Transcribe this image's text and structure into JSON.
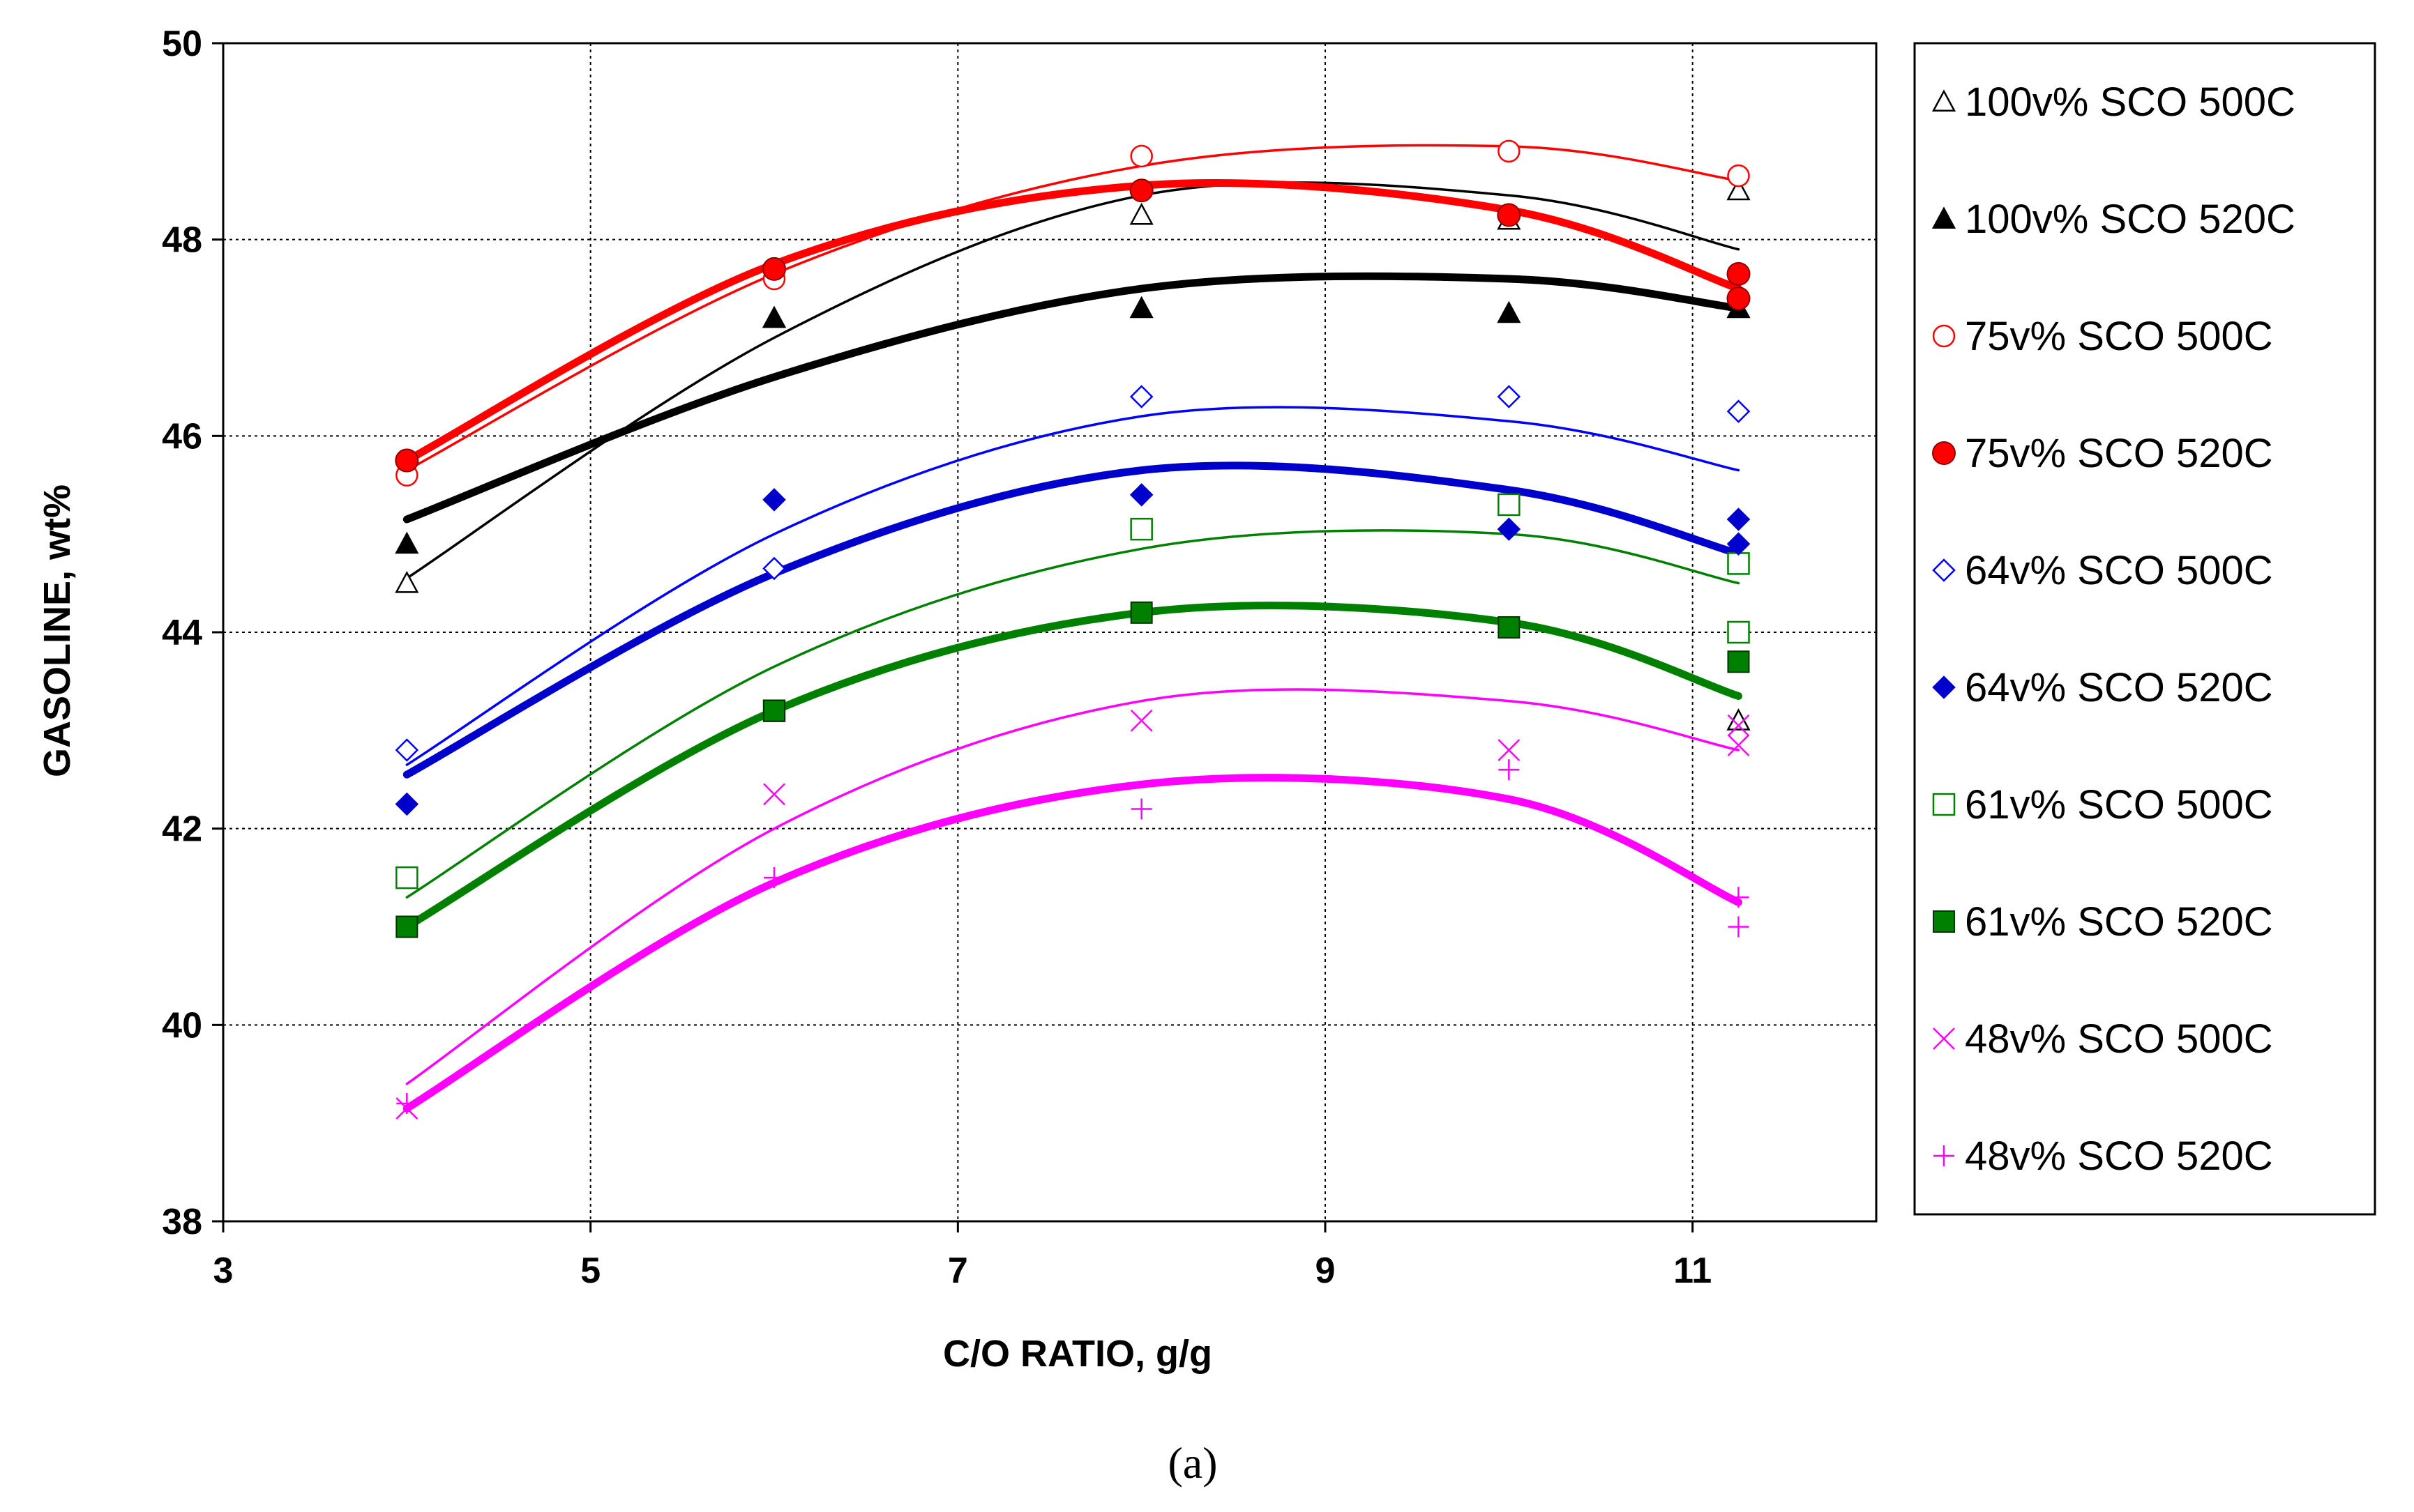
{
  "chart_data": {
    "type": "scatter",
    "title": "",
    "caption": "(a)",
    "xlabel": "C/O RATIO, g/g",
    "ylabel": "GASOLINE, wt%",
    "xlim": [
      3,
      12
    ],
    "ylim": [
      38,
      50
    ],
    "xticks": [
      3,
      5,
      7,
      9,
      11
    ],
    "yticks": [
      38,
      40,
      42,
      44,
      46,
      48,
      50
    ],
    "grid": "dashed-major",
    "legend_position": "right",
    "x": [
      4.0,
      6.0,
      8.0,
      10.0,
      11.25
    ],
    "series": [
      {
        "name": "100v% SCO 500C",
        "marker": "triangle-open",
        "color": "#000000",
        "line_weight": "thin",
        "values": [
          44.5,
          47.2,
          48.25,
          48.2,
          48.5
        ],
        "trend": [
          44.55,
          47.0,
          48.45,
          48.45,
          47.9
        ]
      },
      {
        "name": "100v% SCO 520C",
        "marker": "triangle-filled",
        "color": "#000000",
        "line_weight": "thick",
        "values": [
          44.9,
          47.2,
          47.3,
          47.25,
          47.3
        ],
        "trend": [
          45.15,
          46.6,
          47.5,
          47.6,
          47.3
        ]
      },
      {
        "name": "75v% SCO 500C",
        "marker": "circle-open",
        "color": "#ff0000",
        "line_weight": "thin",
        "values": [
          45.6,
          47.6,
          48.85,
          48.9,
          48.65
        ],
        "trend": [
          45.65,
          47.65,
          48.75,
          48.95,
          48.6
        ]
      },
      {
        "name": "75v% SCO 520C",
        "marker": "circle-filled",
        "color": "#ff0000",
        "line_weight": "thick",
        "values": [
          45.75,
          47.7,
          48.5,
          48.25,
          47.65
        ],
        "trend": [
          45.75,
          47.75,
          48.55,
          48.3,
          47.5
        ]
      },
      {
        "name": "64v% SCO 500C",
        "marker": "diamond-open",
        "color": "#0000ff",
        "line_weight": "thin",
        "values": [
          42.8,
          44.65,
          46.4,
          46.4,
          46.25
        ],
        "trend": [
          42.65,
          45.0,
          46.2,
          46.15,
          45.65
        ]
      },
      {
        "name": "64v% SCO 520C",
        "marker": "diamond-filled",
        "color": "#0000cc",
        "line_weight": "thick",
        "values": [
          42.25,
          45.35,
          45.4,
          45.05,
          45.15
        ],
        "trend": [
          42.55,
          44.6,
          45.65,
          45.45,
          44.8
        ]
      },
      {
        "name": "61v% SCO 500C",
        "marker": "square-open",
        "color": "#008000",
        "line_weight": "thin",
        "values": [
          41.5,
          43.2,
          45.05,
          45.3,
          44.7
        ],
        "trend": [
          41.3,
          43.65,
          44.85,
          45.0,
          44.5
        ]
      },
      {
        "name": "61v% SCO 520C",
        "marker": "square-filled",
        "color": "#008000",
        "line_weight": "thick",
        "values": [
          41.0,
          43.2,
          44.2,
          44.05,
          43.7
        ],
        "trend": [
          41.0,
          43.2,
          44.2,
          44.1,
          43.35
        ]
      },
      {
        "name": "48v% SCO 500C",
        "marker": "x",
        "color": "#ff00ff",
        "line_weight": "thin",
        "values": [
          39.15,
          42.35,
          43.1,
          42.8,
          42.85
        ],
        "trend": [
          39.4,
          42.0,
          43.3,
          43.3,
          42.8
        ]
      },
      {
        "name": "48v% SCO 520C",
        "marker": "plus",
        "color": "#ff00ff",
        "line_weight": "thick",
        "values": [
          39.2,
          41.5,
          42.2,
          42.6,
          41.0
        ],
        "trend": [
          39.15,
          41.45,
          42.45,
          42.3,
          41.25
        ]
      }
    ],
    "extra_points": [
      {
        "series": "100v% SCO 500C",
        "x": 11.25,
        "y": 43.1
      },
      {
        "series": "64v% SCO 520C",
        "x": 11.25,
        "y": 44.9
      },
      {
        "series": "75v% SCO 520C",
        "x": 11.25,
        "y": 47.4
      },
      {
        "series": "61v% SCO 500C",
        "x": 11.25,
        "y": 44.0
      },
      {
        "series": "48v% SCO 500C",
        "x": 11.25,
        "y": 43.05
      },
      {
        "series": "48v% SCO 520C",
        "x": 11.25,
        "y": 41.3
      }
    ]
  }
}
